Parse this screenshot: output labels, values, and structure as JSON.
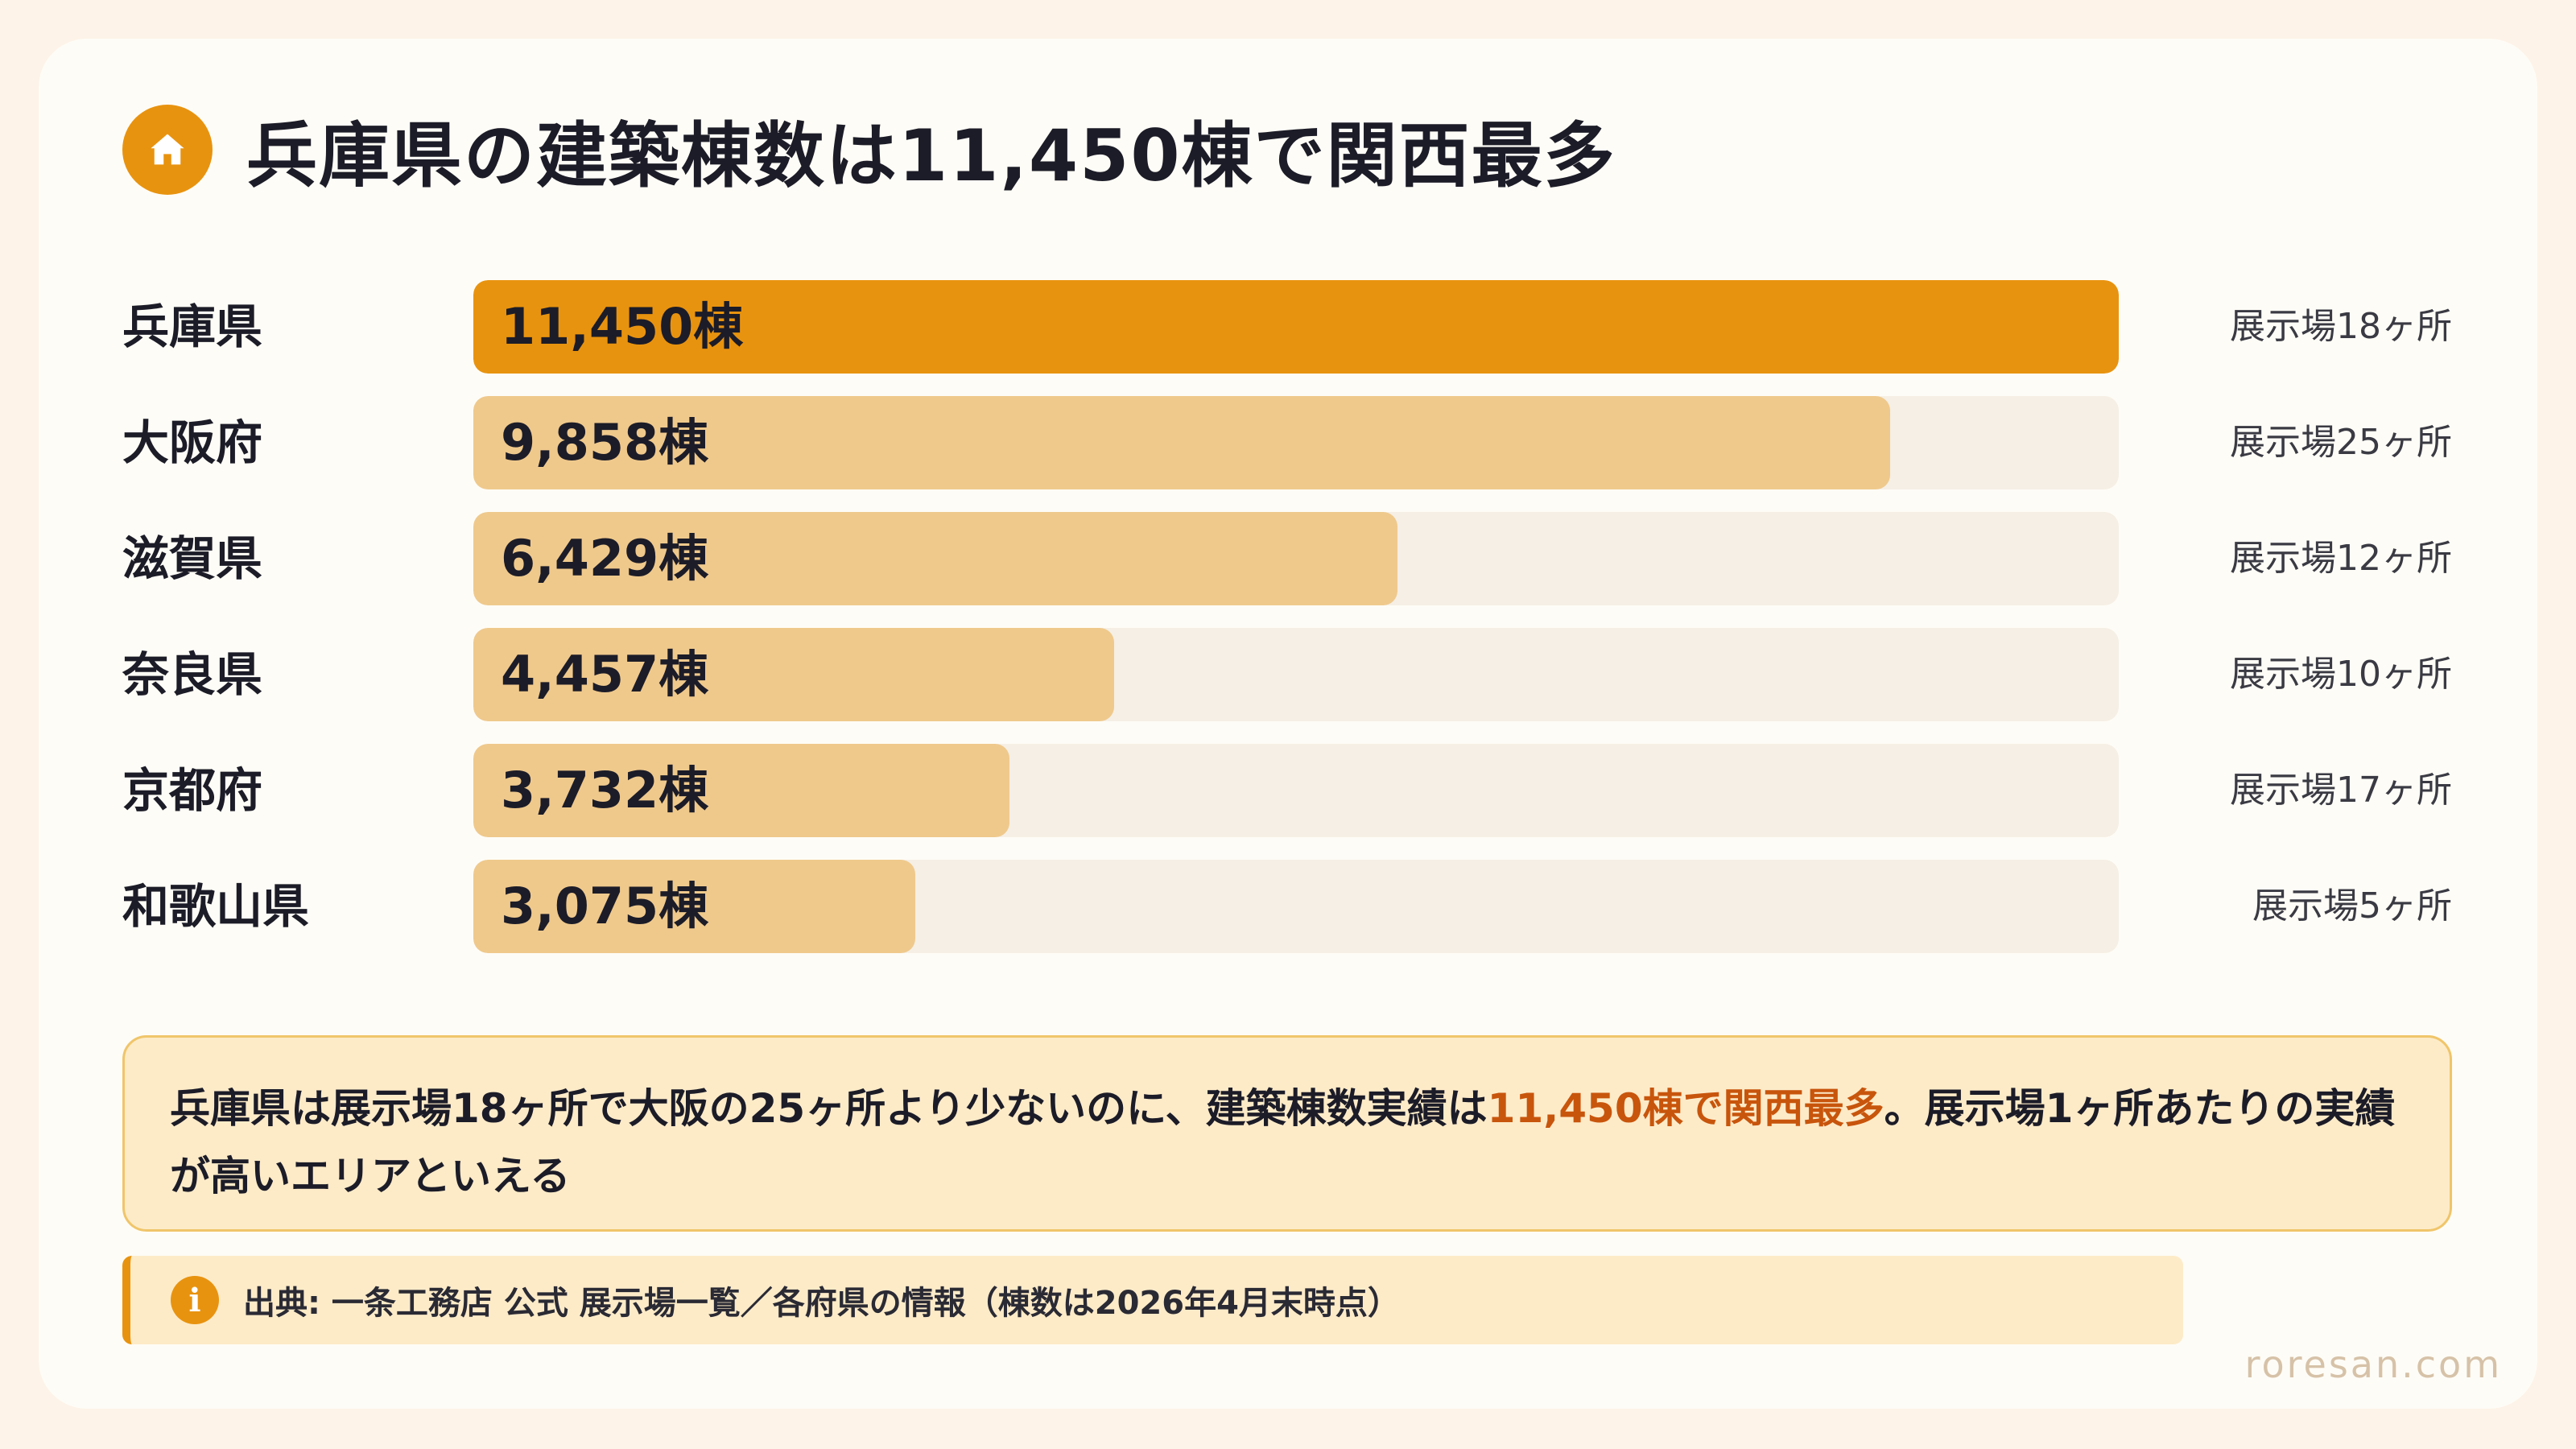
{
  "title": "兵庫県の建築棟数は11,450棟で関西最多",
  "note": {
    "before": "兵庫県は展示場18ヶ所で大阪の25ヶ所より少ないのに、建築棟数実績は",
    "highlight": "11,450棟で関西最多",
    "after": "。展示場1ヶ所あたりの実績が高いエリアといえる"
  },
  "source": {
    "text": "出典: 一条工務店 公式 展示場一覧／各府県の情報（棟数は2026年4月末時点）"
  },
  "watermark": "roresan.com",
  "colors": {
    "highlight_bar": "#e8930f",
    "bar": "#efc98c",
    "track": "#f5efe5",
    "highlight_text": "#c8550c"
  },
  "chart_data": {
    "type": "bar",
    "orientation": "horizontal",
    "categories": [
      "兵庫県",
      "大阪府",
      "滋賀県",
      "奈良県",
      "京都府",
      "和歌山県"
    ],
    "values": [
      11450,
      9858,
      6429,
      4457,
      3732,
      3075
    ],
    "value_labels": [
      "11,450棟",
      "9,858棟",
      "6,429棟",
      "4,457棟",
      "3,732棟",
      "3,075棟"
    ],
    "annotations": [
      "展示場18ヶ所",
      "展示場25ヶ所",
      "展示場12ヶ所",
      "展示場10ヶ所",
      "展示場17ヶ所",
      "展示場5ヶ所"
    ],
    "highlight_category": "兵庫県",
    "xlim": [
      0,
      11450
    ]
  }
}
